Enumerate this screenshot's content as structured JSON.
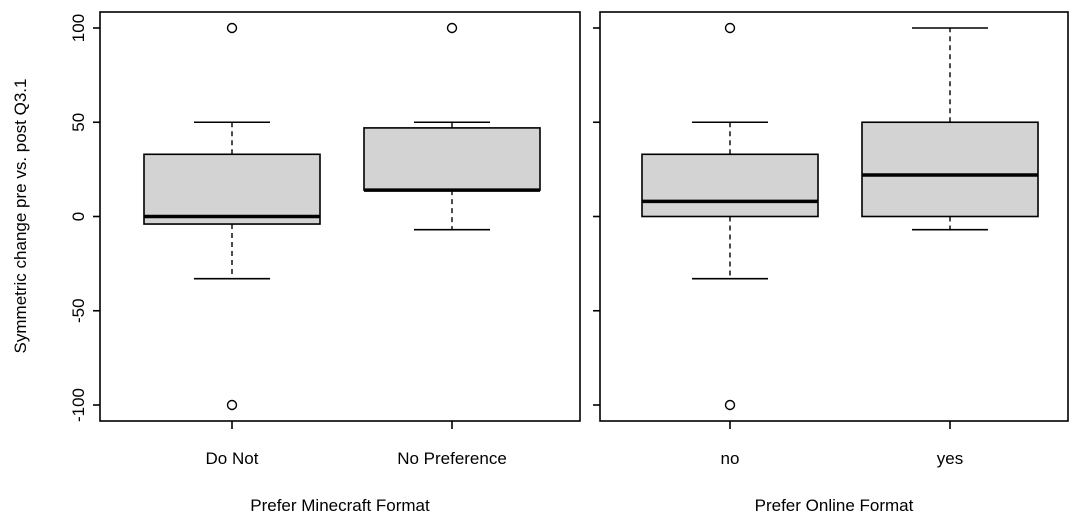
{
  "chart_data": [
    {
      "type": "boxplot",
      "xlabel": "Prefer Minecraft Format",
      "ylabel": "Symmetric change pre vs. post Q3.1",
      "ylim": [
        -108,
        108
      ],
      "yticks": [
        -100,
        -50,
        0,
        50,
        100
      ],
      "yticklabels": [
        "-100",
        "-50",
        "0",
        "50",
        "100"
      ],
      "box_color": "#d3d3d3",
      "categories": [
        "Do Not",
        "No Preference"
      ],
      "boxes": [
        {
          "whisker_low": -33,
          "q1": -4,
          "median": 0,
          "q3": 33,
          "whisker_high": 50,
          "outliers": [
            100,
            -100
          ]
        },
        {
          "whisker_low": -7,
          "q1": 14,
          "median": 14,
          "q3": 47,
          "whisker_high": 50,
          "outliers": [
            100
          ]
        }
      ]
    },
    {
      "type": "boxplot",
      "xlabel": "Prefer Online Format",
      "ylabel": "",
      "ylim": [
        -108,
        108
      ],
      "yticks": [
        -100,
        -50,
        0,
        50,
        100
      ],
      "yticklabels": [],
      "box_color": "#d3d3d3",
      "categories": [
        "no",
        "yes"
      ],
      "boxes": [
        {
          "whisker_low": -33,
          "q1": 0,
          "median": 8,
          "q3": 33,
          "whisker_high": 50,
          "outliers": [
            100,
            -100
          ]
        },
        {
          "whisker_low": -7,
          "q1": 0,
          "median": 22,
          "q3": 50,
          "whisker_high": 100,
          "outliers": []
        }
      ]
    }
  ]
}
